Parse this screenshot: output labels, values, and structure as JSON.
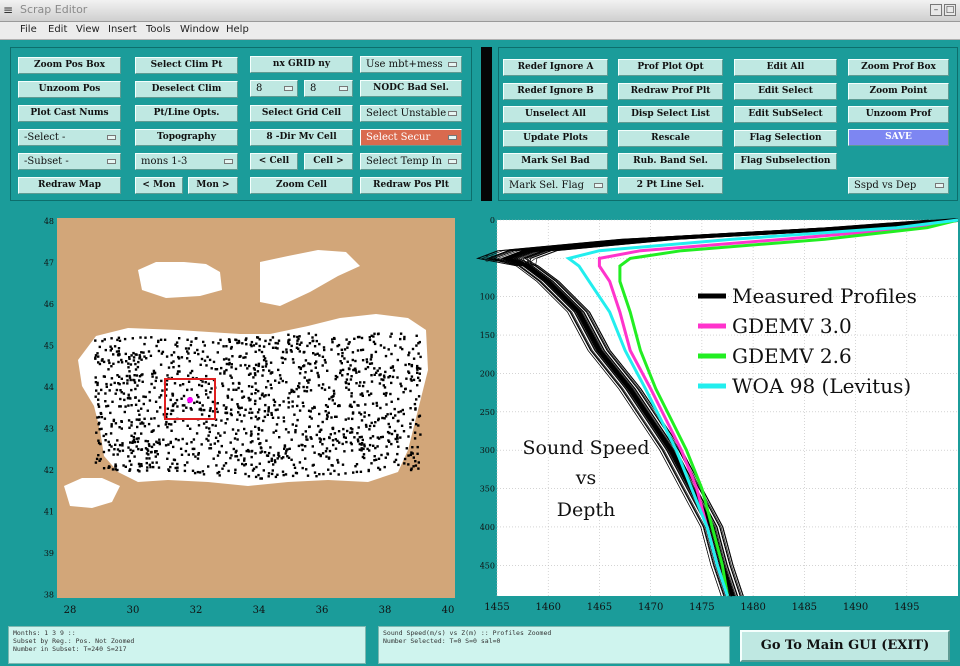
{
  "window": {
    "title": "Scrap Editor",
    "sysmenu_icon": "menu-icon"
  },
  "menubar": [
    {
      "label": "File"
    },
    {
      "label": "Edit"
    },
    {
      "label": "View"
    },
    {
      "label": "Insert"
    },
    {
      "label": "Tools"
    },
    {
      "label": "Window"
    },
    {
      "label": "Help"
    }
  ],
  "left_panel": {
    "zoom_pos_box": "Zoom Pos Box",
    "unzoom_pos": "Unzoom Pos",
    "plot_cast_nums": "Plot Cast Nums",
    "select_dd": "-Select -",
    "subset_dd": "-Subset -",
    "redraw_map": "Redraw Map",
    "select_clim_pt": "Select Clim Pt",
    "deselect_clim": "Deselect Clim",
    "ptline_opts": "Pt/Line Opts.",
    "topography": "Topography",
    "months_dd": "mons 1-3",
    "prev_mon": "< Mon",
    "next_mon": "Mon >",
    "grid_title": "nx GRID ny",
    "nx_dd": "8",
    "ny_dd": "8",
    "select_grid_cell": "Select Grid Cell",
    "dir_mv_cell": "8 -Dir Mv Cell",
    "prev_cell": "< Cell",
    "next_cell": "Cell >",
    "zoom_cell": "Zoom Cell",
    "use_dd": "Use mbt+mess",
    "nodc_bad_sel": "NODC Bad Sel.",
    "select_unstable_dd": "Select Unstable",
    "select_secur_dd": "Select Secur",
    "select_temp_dd": "Select Temp In",
    "redraw_pos_plt": "Redraw Pos Plt"
  },
  "right_panel": {
    "redef_ignore_a": "Redef Ignore A",
    "redef_ignore_b": "Redef Ignore B",
    "unselect_all": "Unselect All",
    "update_plots": "Update Plots",
    "mark_sel_bad": "Mark Sel Bad",
    "mark_sel_flag_dd": "Mark Sel. Flag",
    "prof_plot_opt": "Prof Plot Opt",
    "redraw_prof_plt": "Redraw Prof Plt",
    "disp_select_list": "Disp Select List",
    "rescale": "Rescale",
    "rub_band_sel": "Rub. Band Sel.",
    "two_pt_line_sel": "2 Pt Line Sel.",
    "edit_all": "Edit All",
    "edit_select": "Edit Select",
    "edit_subselect": "Edit SubSelect",
    "flag_selection": "Flag Selection",
    "flag_subselection": "Flag Subselection",
    "zoom_prof_box": "Zoom Prof Box",
    "zoom_point": "Zoom Point",
    "unzoom_prof": "Unzoom Prof",
    "save": "SAVE",
    "plot_type_dd": "Sspd vs Dep"
  },
  "colors": {
    "background": "#1b9c9a",
    "button": "#bfe8e2",
    "land": "#d2a679",
    "cast": "#000000",
    "highlight_box": "#e02020",
    "selected_point": "#ff00ff",
    "measured": "#000000",
    "gdemv3": "#ff33cc",
    "gdemv26": "#22ee22",
    "woa98": "#22eeee"
  },
  "map": {
    "x_ticks": [
      "28",
      "30",
      "32",
      "34",
      "36",
      "38",
      "40"
    ],
    "y_ticks": [
      "48",
      "47",
      "46",
      "45",
      "44",
      "43",
      "42",
      "41",
      "39",
      "38"
    ]
  },
  "chart_data": {
    "type": "line",
    "title": "",
    "annotation": [
      "Sound Speed",
      "vs",
      "Depth"
    ],
    "xlim": [
      1455,
      1500
    ],
    "ylim": [
      0,
      490
    ],
    "y_inverted": true,
    "x_ticks": [
      "1455",
      "1460",
      "1465",
      "1470",
      "1475",
      "1480",
      "1485",
      "1490",
      "1495"
    ],
    "y_ticks": [
      "0",
      "50",
      "100",
      "150",
      "200",
      "250",
      "300",
      "350",
      "400",
      "450"
    ],
    "grid": true,
    "legend_position": "top-right",
    "series": [
      {
        "name": "Measured Profiles",
        "depth": [
          0,
          10,
          25,
          40,
          50,
          60,
          80,
          120,
          170,
          220,
          260,
          300,
          350,
          400,
          450,
          490
        ],
        "speed": [
          1500,
          1490,
          1470,
          1458,
          1456,
          1458,
          1460,
          1463,
          1465,
          1468,
          1470,
          1472,
          1474,
          1476,
          1477,
          1478
        ]
      },
      {
        "name": "GDEMV 3.0",
        "depth": [
          0,
          10,
          25,
          40,
          50,
          60,
          80,
          120,
          170,
          220,
          260,
          300,
          350,
          400,
          450,
          490
        ],
        "speed": [
          1500,
          1496,
          1483,
          1469,
          1465,
          1465,
          1466,
          1467,
          1468,
          1470,
          1471.5,
          1473,
          1474.5,
          1475.5,
          1476.5,
          1477.5
        ]
      },
      {
        "name": "GDEMV 2.6",
        "depth": [
          0,
          10,
          25,
          40,
          50,
          60,
          80,
          120,
          170,
          220,
          260,
          300,
          350,
          400,
          450,
          490
        ],
        "speed": [
          1500,
          1497,
          1487,
          1473,
          1468,
          1467,
          1467,
          1468,
          1469,
          1470.5,
          1472,
          1473.5,
          1475,
          1476,
          1477,
          1477.5
        ]
      },
      {
        "name": "WOA 98 (Levitus)",
        "depth": [
          0,
          10,
          25,
          40,
          50,
          60,
          80,
          120,
          170,
          220,
          260,
          300,
          350,
          400,
          450,
          490
        ],
        "speed": [
          1500,
          1494,
          1478,
          1465,
          1462,
          1463,
          1464,
          1466,
          1467.5,
          1469.5,
          1471,
          1472.5,
          1474,
          1475.5,
          1476.5,
          1477.5
        ]
      }
    ]
  },
  "status": {
    "left": [
      "Months: 1 3 9 ::",
      "Subset by Reg.: Pos. Not Zoomed",
      "Number in Subset: T=240 S=217"
    ],
    "right": [
      "Sound Speed(m/s) vs Z(m) :: Profiles Zoomed",
      "Number Selected: T=0 S=0 sal=0"
    ]
  },
  "exit_button": "Go To Main GUI (EXIT)"
}
